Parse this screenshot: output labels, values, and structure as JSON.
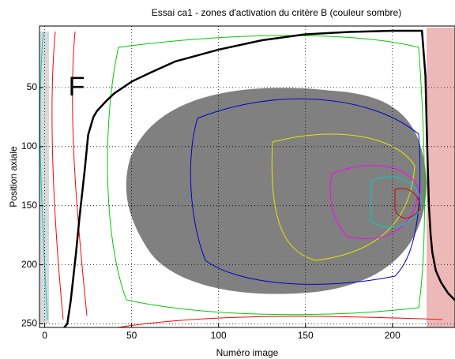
{
  "chart_data": {
    "type": "line",
    "title": "Essai ca1 - zones d'activation du critère B (couleur sombre)",
    "x_label": "Numéro image",
    "y_label": "Position axiale",
    "annotation": "F",
    "xlim": [
      -3,
      236
    ],
    "xticks": [
      0,
      50,
      100,
      150,
      200
    ],
    "ylim": [
      253,
      -2
    ],
    "yticks": [
      50,
      100,
      150,
      200,
      250
    ],
    "grid": true,
    "series": [
      {
        "color": "#000000",
        "x": [
          10,
          13,
          15,
          18,
          20,
          23,
          25,
          28,
          30,
          35,
          40,
          50,
          60,
          75,
          100,
          125,
          150,
          175,
          200,
          217,
          219,
          220,
          221,
          222,
          223,
          225,
          228,
          232,
          236
        ],
        "values": [
          255,
          250,
          230,
          190,
          160,
          120,
          90,
          75,
          70,
          62,
          55,
          45,
          38,
          28,
          18,
          10,
          5,
          3,
          2,
          2,
          40,
          100,
          150,
          175,
          190,
          205,
          215,
          224,
          230
        ]
      }
    ]
  }
}
